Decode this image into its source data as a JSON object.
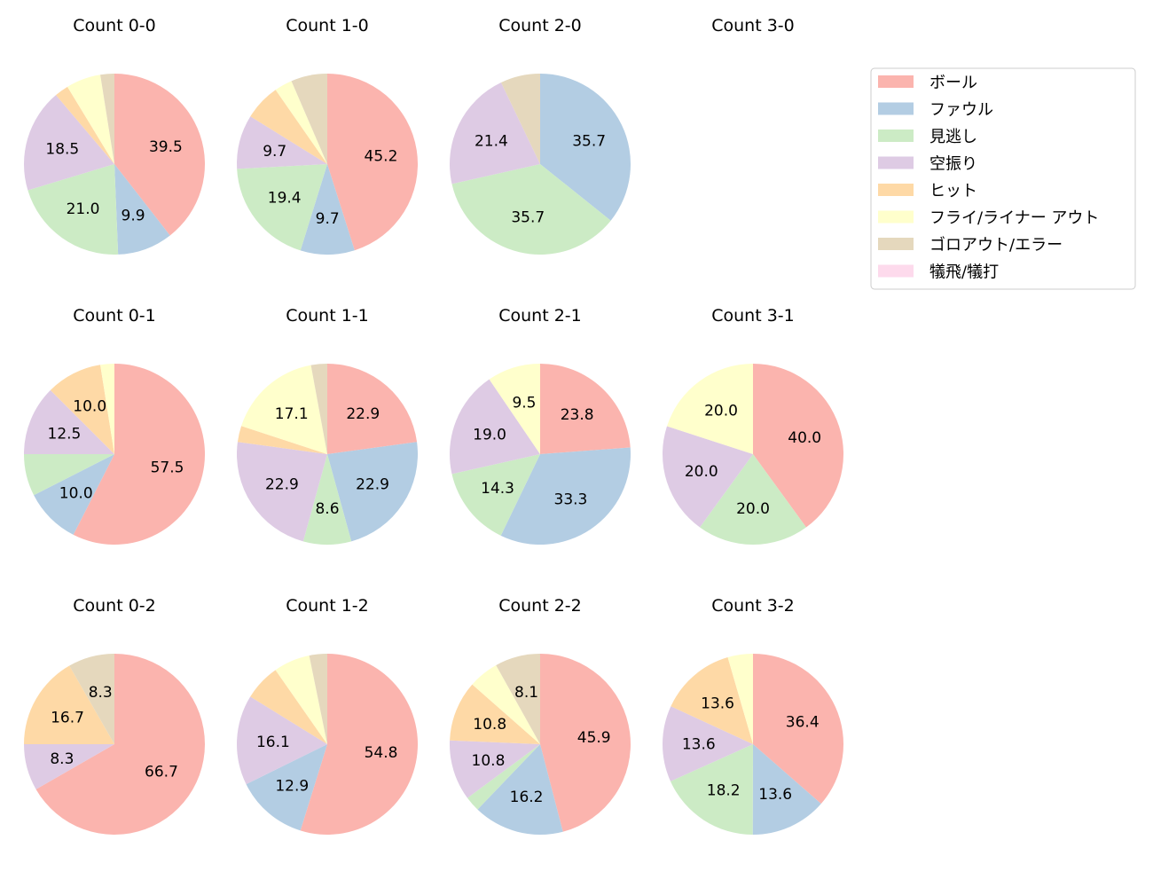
{
  "chart_data": {
    "type": "pie",
    "categories": [
      "ボール",
      "ファウル",
      "見逃し",
      "空振り",
      "ヒット",
      "フライ/ライナー アウト",
      "ゴロアウト/エラー",
      "犠飛/犠打"
    ],
    "colors": [
      "#fbb4ae",
      "#b3cde3",
      "#ccebc5",
      "#decbe4",
      "#fed9a6",
      "#ffffcc",
      "#e5d8bd",
      "#fddaec"
    ],
    "start_angle": 90,
    "direction": "clockwise",
    "value_format": "%.1f",
    "legend_placement": "upper-right",
    "pies": [
      {
        "title": "Count 0-0",
        "values": [
          39.5,
          9.9,
          21.0,
          18.5,
          2.5,
          6.2,
          2.5,
          0
        ]
      },
      {
        "title": "Count 1-0",
        "values": [
          45.2,
          9.7,
          19.4,
          9.7,
          6.5,
          3.2,
          6.5,
          0
        ]
      },
      {
        "title": "Count 2-0",
        "values": [
          0,
          35.7,
          35.7,
          21.4,
          0,
          0,
          7.1,
          0
        ]
      },
      {
        "title": "Count 3-0",
        "values": [
          0,
          0,
          0,
          0,
          0,
          0,
          0,
          0
        ]
      },
      {
        "title": "Count 0-1",
        "values": [
          57.5,
          10.0,
          7.5,
          12.5,
          10.0,
          2.5,
          0,
          0
        ]
      },
      {
        "title": "Count 1-1",
        "values": [
          22.9,
          22.9,
          8.6,
          22.9,
          2.9,
          17.1,
          2.9,
          0
        ]
      },
      {
        "title": "Count 2-1",
        "values": [
          23.8,
          33.3,
          14.3,
          19.0,
          0,
          9.5,
          0,
          0
        ]
      },
      {
        "title": "Count 3-1",
        "values": [
          40.0,
          0,
          20.0,
          20.0,
          0,
          20.0,
          0,
          0
        ]
      },
      {
        "title": "Count 0-2",
        "values": [
          66.7,
          0,
          0,
          8.3,
          16.7,
          0,
          8.3,
          0
        ]
      },
      {
        "title": "Count 1-2",
        "values": [
          54.8,
          12.9,
          0,
          16.1,
          6.5,
          6.5,
          3.2,
          0
        ]
      },
      {
        "title": "Count 2-2",
        "values": [
          45.9,
          16.2,
          2.7,
          10.8,
          10.8,
          5.4,
          8.1,
          0
        ]
      },
      {
        "title": "Count 3-2",
        "values": [
          36.4,
          13.6,
          18.2,
          13.6,
          13.6,
          4.5,
          0,
          0
        ]
      }
    ]
  }
}
